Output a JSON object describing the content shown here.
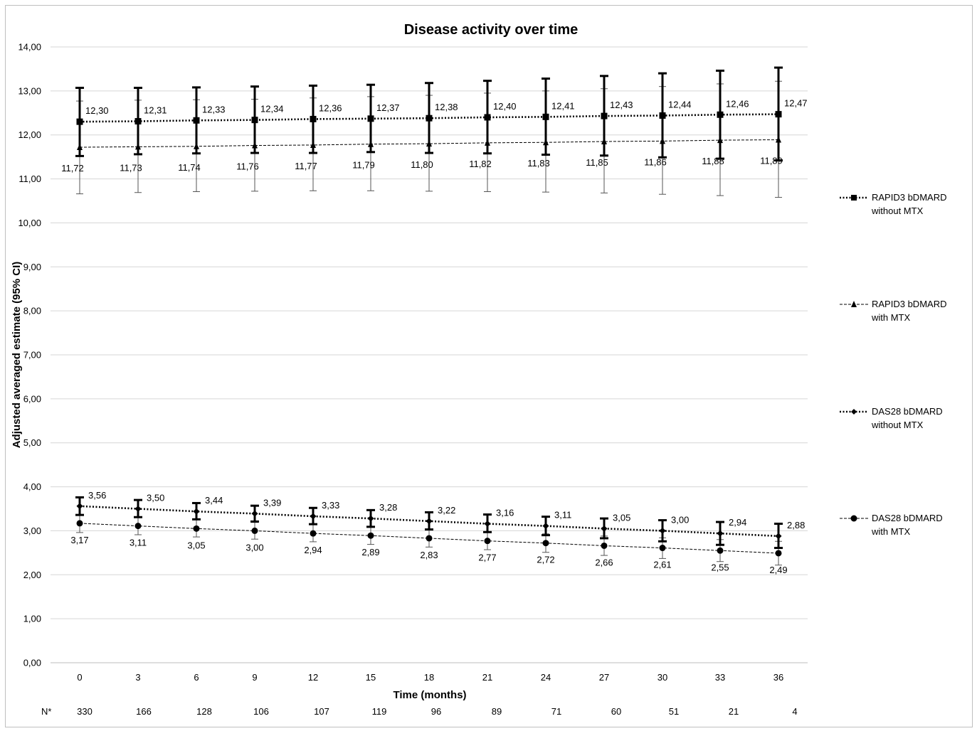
{
  "chart_data": {
    "type": "line",
    "title": "Disease activity over time",
    "xlabel": "Time (months)",
    "ylabel": "Adjusted averaged estimate (95% CI)",
    "ylim": [
      0,
      14
    ],
    "yticks": [
      "0,00",
      "1,00",
      "2,00",
      "3,00",
      "4,00",
      "5,00",
      "6,00",
      "7,00",
      "8,00",
      "9,00",
      "10,00",
      "11,00",
      "12,00",
      "13,00",
      "14,00"
    ],
    "x": [
      "0",
      "3",
      "6",
      "9",
      "12",
      "15",
      "18",
      "21",
      "24",
      "27",
      "30",
      "33",
      "36"
    ],
    "n_label": "N*",
    "n_values": [
      "330",
      "166",
      "128",
      "106",
      "107",
      "119",
      "96",
      "89",
      "71",
      "60",
      "51",
      "21",
      "4"
    ],
    "grid": "horizontal",
    "legend_position": "right",
    "series": [
      {
        "name": "RAPID3 bDMARD without MTX",
        "legend_lines": [
          "RAPID3 bDMARD",
          "without MTX"
        ],
        "marker": "square",
        "values": [
          12.3,
          12.31,
          12.33,
          12.34,
          12.36,
          12.37,
          12.38,
          12.4,
          12.41,
          12.43,
          12.44,
          12.46,
          12.47
        ],
        "labels": [
          "12,30",
          "12,31",
          "12,33",
          "12,34",
          "12,36",
          "12,37",
          "12,38",
          "12,40",
          "12,41",
          "12,43",
          "12,44",
          "12,46",
          "12,47"
        ],
        "ci_low": [
          11.52,
          11.56,
          11.58,
          11.59,
          11.59,
          11.61,
          11.59,
          11.58,
          11.55,
          11.53,
          11.49,
          11.46,
          11.42
        ],
        "ci_high": [
          13.07,
          13.07,
          13.08,
          13.1,
          13.12,
          13.14,
          13.18,
          13.23,
          13.28,
          13.34,
          13.4,
          13.46,
          13.53
        ]
      },
      {
        "name": "RAPID3 bDMARD with MTX",
        "legend_lines": [
          "RAPID3 bDMARD",
          "with MTX"
        ],
        "marker": "triangle",
        "values": [
          11.72,
          11.73,
          11.74,
          11.76,
          11.77,
          11.79,
          11.8,
          11.82,
          11.83,
          11.85,
          11.86,
          11.88,
          11.89
        ],
        "labels": [
          "11,72",
          "11,73",
          "11,74",
          "11,76",
          "11,77",
          "11,79",
          "11,80",
          "11,82",
          "11,83",
          "11,85",
          "11,86",
          "11,88",
          "11,89"
        ],
        "ci_low": [
          10.66,
          10.69,
          10.71,
          10.72,
          10.73,
          10.73,
          10.72,
          10.71,
          10.7,
          10.68,
          10.65,
          10.62,
          10.58
        ],
        "ci_high": [
          12.77,
          12.79,
          12.8,
          12.81,
          12.84,
          12.87,
          12.9,
          12.95,
          13.0,
          13.05,
          13.1,
          13.16,
          13.22
        ]
      },
      {
        "name": "DAS28 bDMARD without MTX",
        "legend_lines": [
          "DAS28 bDMARD",
          "without MTX"
        ],
        "marker": "diamond",
        "values": [
          3.56,
          3.5,
          3.44,
          3.39,
          3.33,
          3.28,
          3.22,
          3.16,
          3.11,
          3.05,
          3.0,
          2.94,
          2.88
        ],
        "labels": [
          "3,56",
          "3,50",
          "3,44",
          "3,39",
          "3,33",
          "3,28",
          "3,22",
          "3,16",
          "3,11",
          "3,05",
          "3,00",
          "2,94",
          "2,88"
        ],
        "ci_low": [
          3.36,
          3.31,
          3.26,
          3.21,
          3.15,
          3.09,
          3.03,
          2.97,
          2.9,
          2.83,
          2.76,
          2.68,
          2.61
        ],
        "ci_high": [
          3.76,
          3.7,
          3.63,
          3.57,
          3.52,
          3.47,
          3.42,
          3.37,
          3.32,
          3.28,
          3.24,
          3.2,
          3.16
        ]
      },
      {
        "name": "DAS28 bDMARD with MTX",
        "legend_lines": [
          "DAS28 bDMARD",
          "with MTX"
        ],
        "marker": "circle",
        "values": [
          3.17,
          3.11,
          3.05,
          3.0,
          2.94,
          2.89,
          2.83,
          2.77,
          2.72,
          2.66,
          2.61,
          2.55,
          2.49
        ],
        "labels": [
          "3,17",
          "3,11",
          "3,05",
          "3,00",
          "2,94",
          "2,89",
          "2,83",
          "2,77",
          "2,72",
          "2,66",
          "2,61",
          "2,55",
          "2,49"
        ],
        "ci_low": [
          2.96,
          2.91,
          2.86,
          2.81,
          2.75,
          2.69,
          2.63,
          2.57,
          2.51,
          2.44,
          2.37,
          2.3,
          2.22
        ],
        "ci_high": [
          3.37,
          3.31,
          3.25,
          3.19,
          3.14,
          3.09,
          3.04,
          2.98,
          2.93,
          2.88,
          2.84,
          2.8,
          2.76
        ]
      }
    ]
  }
}
